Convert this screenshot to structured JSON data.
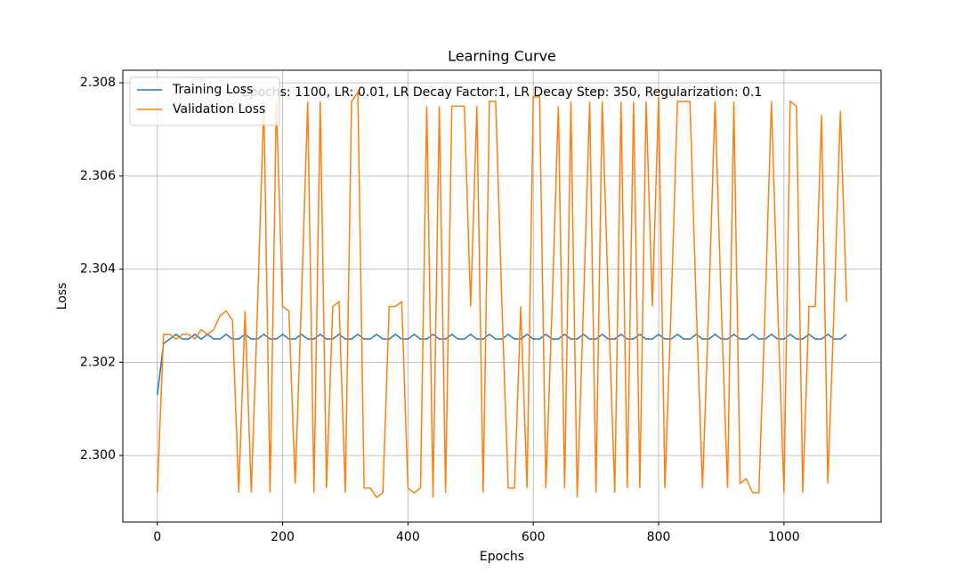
{
  "chart_data": {
    "type": "line",
    "title": "Learning Curve",
    "xlabel": "Epochs",
    "ylabel": "Loss",
    "annotation": "Epochs: 1100, LR: 0.01, LR Decay Factor:1, LR Decay Step: 350, Regularization: 0.1",
    "x": [
      0,
      10,
      20,
      30,
      40,
      50,
      60,
      70,
      80,
      90,
      100,
      110,
      120,
      130,
      140,
      150,
      160,
      170,
      180,
      190,
      200,
      210,
      220,
      230,
      240,
      250,
      260,
      270,
      280,
      290,
      300,
      310,
      320,
      330,
      340,
      350,
      360,
      370,
      380,
      390,
      400,
      410,
      420,
      430,
      440,
      450,
      460,
      470,
      480,
      490,
      500,
      510,
      520,
      530,
      540,
      550,
      560,
      570,
      580,
      590,
      600,
      610,
      620,
      630,
      640,
      650,
      660,
      670,
      680,
      690,
      700,
      710,
      720,
      730,
      740,
      750,
      760,
      770,
      780,
      790,
      800,
      810,
      820,
      830,
      840,
      850,
      860,
      870,
      880,
      890,
      900,
      910,
      920,
      930,
      940,
      950,
      960,
      970,
      980,
      990,
      1000,
      1010,
      1020,
      1030,
      1040,
      1050,
      1060,
      1070,
      1080,
      1090,
      1100
    ],
    "series": [
      {
        "name": "Training Loss",
        "color": "#1f77b4",
        "values": [
          2.3013,
          2.3024,
          2.3025,
          2.3026,
          2.3025,
          2.3025,
          2.3026,
          2.3025,
          2.3026,
          2.3025,
          2.3025,
          2.3026,
          2.3025,
          2.3025,
          2.3026,
          2.3025,
          2.3025,
          2.3026,
          2.3025,
          2.3025,
          2.3026,
          2.3025,
          2.3025,
          2.3026,
          2.3025,
          2.3025,
          2.3026,
          2.3025,
          2.3025,
          2.3026,
          2.3025,
          2.3025,
          2.3026,
          2.3025,
          2.3025,
          2.3026,
          2.3025,
          2.3025,
          2.3026,
          2.3025,
          2.3025,
          2.3026,
          2.3025,
          2.3025,
          2.3026,
          2.3025,
          2.3025,
          2.3026,
          2.3025,
          2.3025,
          2.3026,
          2.3025,
          2.3025,
          2.3026,
          2.3025,
          2.3025,
          2.3026,
          2.3025,
          2.3025,
          2.3026,
          2.3025,
          2.3025,
          2.3026,
          2.3025,
          2.3025,
          2.3026,
          2.3025,
          2.3025,
          2.3026,
          2.3025,
          2.3025,
          2.3026,
          2.3025,
          2.3025,
          2.3026,
          2.3025,
          2.3025,
          2.3026,
          2.3025,
          2.3025,
          2.3026,
          2.3025,
          2.3025,
          2.3026,
          2.3025,
          2.3025,
          2.3026,
          2.3025,
          2.3025,
          2.3026,
          2.3025,
          2.3025,
          2.3026,
          2.3025,
          2.3025,
          2.3026,
          2.3025,
          2.3025,
          2.3026,
          2.3025,
          2.3025,
          2.3026,
          2.3025,
          2.3025,
          2.3026,
          2.3025,
          2.3025,
          2.3026,
          2.3025,
          2.3025,
          2.3026
        ]
      },
      {
        "name": "Validation Loss",
        "color": "#ff7f0e",
        "values": [
          2.2992,
          2.3026,
          2.3026,
          2.3025,
          2.3026,
          2.3026,
          2.3025,
          2.3027,
          2.3026,
          2.3027,
          2.303,
          2.3031,
          2.3029,
          2.2992,
          2.3031,
          2.2992,
          2.3032,
          2.3076,
          2.2992,
          2.3076,
          2.3032,
          2.3031,
          2.2994,
          2.3033,
          2.3076,
          2.2992,
          2.3076,
          2.2993,
          2.3032,
          2.3033,
          2.2992,
          2.3076,
          2.3078,
          2.2993,
          2.2993,
          2.2991,
          2.2992,
          2.3032,
          2.3032,
          2.3033,
          2.2993,
          2.2992,
          2.2993,
          2.3075,
          2.2991,
          2.3075,
          2.2992,
          2.3075,
          2.3075,
          2.3075,
          2.3032,
          2.3075,
          2.2992,
          2.3076,
          2.3076,
          2.3032,
          2.2993,
          2.2993,
          2.3032,
          2.2993,
          2.3077,
          2.3077,
          2.2993,
          2.3032,
          2.3075,
          2.2993,
          2.3076,
          2.2991,
          2.3032,
          2.3076,
          2.2992,
          2.3076,
          2.3032,
          2.2992,
          2.3076,
          2.2993,
          2.3076,
          2.2993,
          2.3076,
          2.3032,
          2.3077,
          2.2993,
          2.3032,
          2.3076,
          2.3076,
          2.3076,
          2.3032,
          2.2993,
          2.3032,
          2.3076,
          2.3032,
          2.2993,
          2.3076,
          2.2994,
          2.2995,
          2.2992,
          2.2992,
          2.3032,
          2.3076,
          2.3032,
          2.2992,
          2.3076,
          2.3075,
          2.2992,
          2.3032,
          2.3032,
          2.3073,
          2.2994,
          2.3032,
          2.3074,
          2.3033
        ]
      }
    ],
    "xlim": [
      -55,
      1155
    ],
    "ylim": [
      2.29857,
      2.30827
    ],
    "xticks": [
      0,
      200,
      400,
      600,
      800,
      1000
    ],
    "yticks": [
      {
        "value": 2.3,
        "label": "2.300"
      },
      2.302,
      2.304,
      2.306,
      2.308
    ],
    "grid": true,
    "legend": "upper left"
  }
}
